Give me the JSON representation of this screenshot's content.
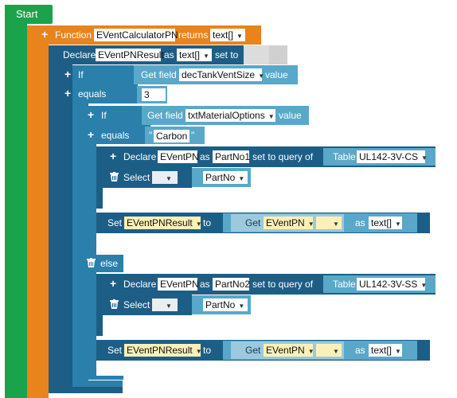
{
  "start": {
    "label": "Start"
  },
  "function_block": {
    "keyword": "Function",
    "name": "EVentCalculatorPN",
    "returns_label": "returns",
    "return_type": "text[]"
  },
  "declare_result": {
    "keyword": "Declare",
    "name": "EVentPNResult",
    "as_label": "as",
    "type": "text[]",
    "set_to_label": "set to"
  },
  "if1": {
    "keyword": "If",
    "get_field_label": "Get field",
    "field": "decTankVentSize",
    "value_label": "value",
    "equals_label": "equals",
    "equals_value": "3"
  },
  "if2": {
    "keyword": "If",
    "get_field_label": "Get field",
    "field": "txtMaterialOptions",
    "value_label": "value",
    "equals_label": "equals",
    "equals_value": "Carbon",
    "quote": "\""
  },
  "branch1": {
    "declare_keyword": "Declare",
    "declare_name": "EVentPN",
    "as_label": "as",
    "alias": "PartNo1",
    "set_to_query_label": "set to query of",
    "table_label": "Table",
    "table": "UL142-3V-CS",
    "select_label": "Select",
    "select_field": "PartNo",
    "set_keyword": "Set",
    "set_target": "EVentPNResult",
    "to_label": "to",
    "get_label": "Get",
    "get_var": "EVentPN",
    "as_cast_label": "as",
    "cast_type": "text[]"
  },
  "else_label": "else",
  "branch2": {
    "declare_keyword": "Declare",
    "declare_name": "EVentPN",
    "as_label": "as",
    "alias": "PartNo2",
    "set_to_query_label": "set to query of",
    "table_label": "Table",
    "table": "UL142-3V-SS",
    "select_label": "Select",
    "select_field": "PartNo",
    "set_keyword": "Set",
    "set_target": "EVentPNResult",
    "to_label": "to",
    "get_label": "Get",
    "get_var": "EVentPN",
    "as_cast_label": "as",
    "cast_type": "text[]"
  },
  "colors": {
    "start": "#1aa34a",
    "function": "#e8841b",
    "declare": "#1d5e86",
    "control": "#2a7fab",
    "expression": "#59a8c9"
  }
}
